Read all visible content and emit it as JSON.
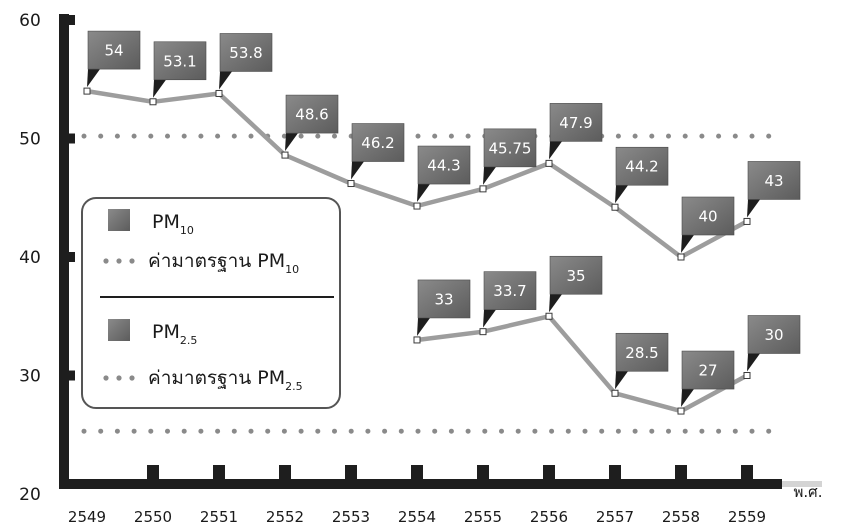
{
  "chart_data": {
    "type": "line",
    "x_unit": "พ.ศ.",
    "categories": [
      "2549",
      "2550",
      "2551",
      "2552",
      "2553",
      "2554",
      "2555",
      "2556",
      "2557",
      "2558",
      "2559"
    ],
    "ylim": [
      20,
      60
    ],
    "yticks": [
      20,
      30,
      40,
      50,
      60
    ],
    "series": [
      {
        "name": "PM10",
        "values": [
          54,
          53.1,
          53.8,
          48.6,
          46.2,
          44.3,
          45.75,
          47.9,
          44.2,
          40,
          43
        ],
        "labels": [
          "54",
          "53.1",
          "53.8",
          "48.6",
          "46.2",
          "44.3",
          "45.75",
          "47.9",
          "44.2",
          "40",
          "43"
        ]
      },
      {
        "name": "PM2.5",
        "values": [
          null,
          null,
          null,
          null,
          null,
          33,
          33.7,
          35,
          28.5,
          27,
          30
        ],
        "labels": [
          "",
          "",
          "",
          "",
          "",
          "33",
          "33.7",
          "35",
          "28.5",
          "27",
          "30"
        ]
      }
    ],
    "standards": [
      {
        "name": "ค่ามาตรฐาน PM10",
        "value": 50.2
      },
      {
        "name": "ค่ามาตรฐาน PM2.5",
        "value": 25.3
      }
    ],
    "legend": {
      "placement": "left",
      "pm10": {
        "prefix": "PM",
        "sub": "10"
      },
      "std10": {
        "prefix": "ค่ามาตรฐาน PM",
        "sub": "10"
      },
      "pm25": {
        "prefix": "PM",
        "sub": "2.5"
      },
      "std25": {
        "prefix": "ค่ามาตรฐาน PM",
        "sub": "2.5"
      }
    },
    "colors": {
      "line": "#9d9d9d",
      "box": "#6e6e6e",
      "axis": "#1e1e1e",
      "dots": "#8a8a8a"
    },
    "grid": false
  }
}
